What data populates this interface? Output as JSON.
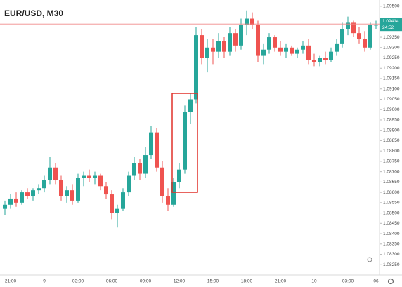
{
  "chart_data": {
    "type": "candlestick",
    "title": "EUR/USD, M30",
    "categories": [
      null,
      "21:00",
      null,
      null,
      null,
      null,
      null,
      "9",
      null,
      null,
      null,
      null,
      null,
      "03:00",
      null,
      null,
      null,
      null,
      null,
      "06:00",
      null,
      null,
      null,
      null,
      null,
      "09:00",
      null,
      null,
      null,
      null,
      null,
      "12:00",
      null,
      null,
      null,
      null,
      null,
      "15:00",
      null,
      null,
      null,
      null,
      null,
      "18:00",
      null,
      null,
      null,
      null,
      null,
      "21:00",
      null,
      null,
      null,
      null,
      null,
      "10",
      null,
      null,
      null,
      null,
      null,
      "03:00",
      null,
      null,
      null,
      null,
      "06"
    ],
    "open": [
      1.0852,
      1.0854,
      1.0857,
      1.0855,
      1.086,
      1.0858,
      1.0861,
      1.0862,
      1.0866,
      1.0872,
      1.0866,
      1.0858,
      1.0861,
      1.0856,
      1.0867,
      1.0868,
      1.0867,
      1.0868,
      1.0863,
      1.0859,
      1.085,
      1.0852,
      1.086,
      1.0868,
      1.0874,
      1.0869,
      1.0878,
      1.0889,
      1.0872,
      1.0858,
      1.0854,
      1.0865,
      1.0871,
      1.0899,
      1.0905,
      1.0936,
      1.0925,
      1.093,
      1.0928,
      1.0933,
      1.0928,
      1.0937,
      1.0931,
      1.0941,
      1.0944,
      1.0941,
      1.0926,
      1.0929,
      1.0935,
      1.093,
      1.0928,
      1.093,
      1.0927,
      1.0929,
      1.0931,
      1.0924,
      1.0923,
      1.0925,
      1.0924,
      1.0928,
      1.0932,
      1.0939,
      1.0942,
      1.0937,
      1.0934,
      1.093,
      1.0941
    ],
    "high": [
      1.0856,
      1.0859,
      1.086,
      1.0861,
      1.0862,
      1.0862,
      1.0864,
      1.0868,
      1.0877,
      1.0874,
      1.0868,
      1.0863,
      1.0864,
      1.0869,
      1.087,
      1.0871,
      1.087,
      1.0869,
      1.0865,
      1.0861,
      1.0854,
      1.0862,
      1.087,
      1.0877,
      1.0876,
      1.0882,
      1.0892,
      1.0891,
      1.0875,
      1.0862,
      1.0867,
      1.0874,
      1.0902,
      1.0908,
      1.094,
      1.0939,
      1.0934,
      1.0934,
      1.0937,
      1.0935,
      1.094,
      1.0939,
      1.0944,
      1.0948,
      1.0947,
      1.0943,
      1.0932,
      1.0937,
      1.0936,
      1.0933,
      1.0932,
      1.0931,
      1.093,
      1.0933,
      1.0934,
      1.0927,
      1.0926,
      1.0928,
      1.093,
      1.0934,
      1.0942,
      1.0945,
      1.0943,
      1.094,
      1.0938,
      1.0942,
      1.0943
    ],
    "low": [
      1.0849,
      1.0852,
      1.0853,
      1.0854,
      1.0857,
      1.0856,
      1.0859,
      1.086,
      1.0864,
      1.0864,
      1.0856,
      1.0855,
      1.0854,
      1.0855,
      1.0863,
      1.0865,
      1.0864,
      1.0861,
      1.0857,
      1.0847,
      1.0843,
      1.0851,
      1.0858,
      1.0866,
      1.0866,
      1.0867,
      1.0876,
      1.087,
      1.0855,
      1.0851,
      1.0853,
      1.0862,
      1.0869,
      1.0893,
      1.0903,
      1.0922,
      1.0918,
      1.0922,
      1.0925,
      1.0925,
      1.0926,
      1.0928,
      1.0929,
      1.0936,
      1.0939,
      1.0923,
      1.0922,
      1.0927,
      1.0928,
      1.0926,
      1.0925,
      1.0926,
      1.0925,
      1.0927,
      1.0922,
      1.0921,
      1.0921,
      1.0922,
      1.0923,
      1.0926,
      1.093,
      1.0936,
      1.0935,
      1.0932,
      1.0928,
      1.0929,
      1.0939
    ],
    "close": [
      1.0854,
      1.0857,
      1.0855,
      1.086,
      1.0858,
      1.0861,
      1.0862,
      1.0866,
      1.0872,
      1.0866,
      1.0858,
      1.0861,
      1.0856,
      1.0867,
      1.0868,
      1.0867,
      1.0868,
      1.0863,
      1.0859,
      1.085,
      1.0852,
      1.086,
      1.0868,
      1.0874,
      1.0869,
      1.0878,
      1.0889,
      1.0872,
      1.0858,
      1.0854,
      1.0865,
      1.0871,
      1.0899,
      1.0905,
      1.0936,
      1.0925,
      1.093,
      1.0928,
      1.0933,
      1.0928,
      1.0937,
      1.0931,
      1.0941,
      1.0944,
      1.0941,
      1.0926,
      1.0929,
      1.0935,
      1.093,
      1.0928,
      1.093,
      1.0927,
      1.0929,
      1.0931,
      1.0924,
      1.0923,
      1.0925,
      1.0924,
      1.0928,
      1.0932,
      1.0939,
      1.0942,
      1.0937,
      1.0934,
      1.093,
      1.0941,
      1.0941
    ],
    "up_color": "#26a69a",
    "down_color": "#ef5350",
    "ylim": [
      1.082,
      1.0953
    ],
    "yticks": [
      {
        "value": 1.0825,
        "label": "1.08250"
      },
      {
        "value": 1.083,
        "label": "1.08300"
      },
      {
        "value": 1.0835,
        "label": "1.08350"
      },
      {
        "value": 1.084,
        "label": "1.08400"
      },
      {
        "value": 1.0845,
        "label": "1.08450"
      },
      {
        "value": 1.085,
        "label": "1.08500"
      },
      {
        "value": 1.0855,
        "label": "1.08550"
      },
      {
        "value": 1.086,
        "label": "1.08600"
      },
      {
        "value": 1.0865,
        "label": "1.08650"
      },
      {
        "value": 1.087,
        "label": "1.08700"
      },
      {
        "value": 1.0875,
        "label": "1.08750"
      },
      {
        "value": 1.088,
        "label": "1.08800"
      },
      {
        "value": 1.0885,
        "label": "1.08850"
      },
      {
        "value": 1.089,
        "label": "1.08900"
      },
      {
        "value": 1.0895,
        "label": "1.08950"
      },
      {
        "value": 1.09,
        "label": "1.09000"
      },
      {
        "value": 1.0905,
        "label": "1.09050"
      },
      {
        "value": 1.091,
        "label": "1.09100"
      },
      {
        "value": 1.0915,
        "label": "1.09150"
      },
      {
        "value": 1.092,
        "label": "1.09200"
      },
      {
        "value": 1.0925,
        "label": "1.09250"
      },
      {
        "value": 1.093,
        "label": "1.09300"
      },
      {
        "value": 1.0935,
        "label": "1.09350"
      },
      {
        "value": 1.095,
        "label": "1.09500"
      }
    ],
    "current_price": {
      "value": 1.09414,
      "label": "1.09414"
    },
    "countdown": "24:52",
    "grid": false
  }
}
